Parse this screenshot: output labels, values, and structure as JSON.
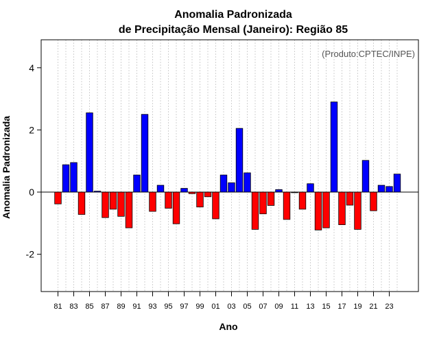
{
  "chart_data": {
    "type": "bar",
    "title_line1": "Anomalia Padronizada",
    "title_line2": "de Precipitação Mensal (Janeiro): Região 85",
    "xlabel": "Ano",
    "ylabel": "Anomalia Padronizada",
    "credit": "(Produto:CPTEC/INPE)",
    "ylim": [
      -3.2,
      4.9
    ],
    "yticks": [
      -2,
      0,
      2,
      4
    ],
    "ytick_labels": [
      "-2",
      "0",
      "2",
      "4"
    ],
    "positive_color": "#0000ff",
    "negative_color": "#ff0000",
    "grid": "vertical dotted",
    "categories": [
      "1981",
      "1982",
      "1983",
      "1984",
      "1985",
      "1986",
      "1987",
      "1988",
      "1989",
      "1990",
      "1991",
      "1992",
      "1993",
      "1994",
      "1995",
      "1996",
      "1997",
      "1998",
      "1999",
      "2000",
      "2001",
      "2002",
      "2003",
      "2004",
      "2005",
      "2006",
      "2007",
      "2008",
      "2009",
      "2010",
      "2011",
      "2012",
      "2013",
      "2014",
      "2015",
      "2016",
      "2017",
      "2018",
      "2019",
      "2020",
      "2021",
      "2022",
      "2023",
      "2024"
    ],
    "values": [
      -0.38,
      0.88,
      0.95,
      -0.72,
      2.55,
      0.03,
      -0.82,
      -0.55,
      -0.78,
      -1.15,
      0.55,
      2.5,
      -0.62,
      0.22,
      -0.52,
      -1.02,
      0.12,
      -0.05,
      -0.48,
      -0.15,
      -0.86,
      0.55,
      0.3,
      2.05,
      0.62,
      -1.2,
      -0.7,
      -0.43,
      0.08,
      -0.88,
      -0.02,
      -0.55,
      0.27,
      -1.22,
      -1.15,
      2.9,
      -1.05,
      -0.42,
      -1.2,
      1.02,
      -0.6,
      0.22,
      0.18,
      0.58
    ],
    "xtick_labels": [
      "81",
      "83",
      "85",
      "87",
      "89",
      "91",
      "93",
      "95",
      "97",
      "99",
      "01",
      "03",
      "05",
      "07",
      "09",
      "11",
      "13",
      "15",
      "17",
      "19",
      "21",
      "23"
    ]
  }
}
